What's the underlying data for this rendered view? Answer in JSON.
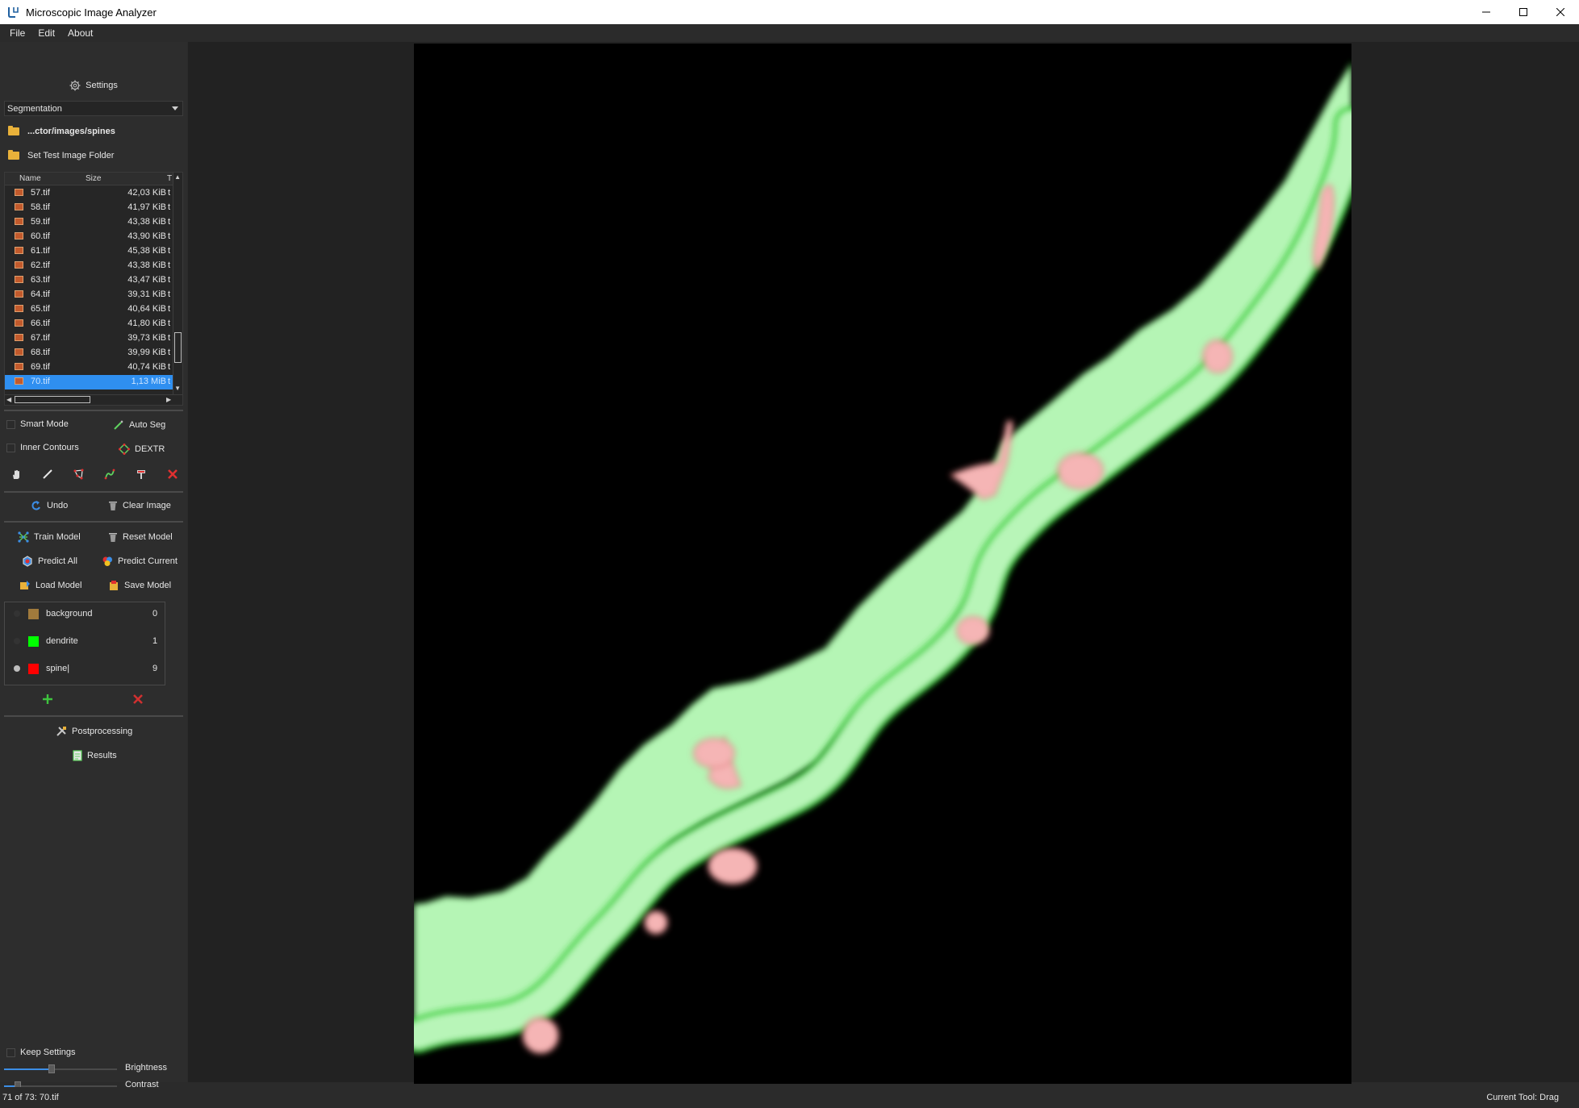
{
  "window": {
    "title": "Microscopic Image Analyzer",
    "controls": [
      "minimize-icon",
      "maximize-icon",
      "close-icon"
    ]
  },
  "menu": [
    "File",
    "Edit",
    "About"
  ],
  "sidebar": {
    "settings_label": "Settings",
    "mode_select": "Segmentation",
    "image_folder": "...ctor/images/spines",
    "test_folder_label": "Set Test Image Folder",
    "file_table": {
      "headers": [
        "Name",
        "Size",
        "T"
      ],
      "rows": [
        {
          "name": "57.tif",
          "size": "42,03 KiB",
          "type": "t"
        },
        {
          "name": "58.tif",
          "size": "41,97 KiB",
          "type": "t"
        },
        {
          "name": "59.tif",
          "size": "43,38 KiB",
          "type": "t"
        },
        {
          "name": "60.tif",
          "size": "43,90 KiB",
          "type": "t"
        },
        {
          "name": "61.tif",
          "size": "45,38 KiB",
          "type": "t"
        },
        {
          "name": "62.tif",
          "size": "43,38 KiB",
          "type": "t"
        },
        {
          "name": "63.tif",
          "size": "43,47 KiB",
          "type": "t"
        },
        {
          "name": "64.tif",
          "size": "39,31 KiB",
          "type": "t"
        },
        {
          "name": "65.tif",
          "size": "40,64 KiB",
          "type": "t"
        },
        {
          "name": "66.tif",
          "size": "41,80 KiB",
          "type": "t"
        },
        {
          "name": "67.tif",
          "size": "39,73 KiB",
          "type": "t"
        },
        {
          "name": "68.tif",
          "size": "39,99 KiB",
          "type": "t"
        },
        {
          "name": "69.tif",
          "size": "40,74 KiB",
          "type": "t"
        },
        {
          "name": "70.tif",
          "size": "1,13 MiB",
          "type": "t"
        }
      ],
      "selected_index": 13
    },
    "smart_mode_label": "Smart Mode",
    "auto_seg_label": "Auto Seg",
    "inner_contours_label": "Inner Contours",
    "dextr_label": "DEXTR",
    "tool_icons": [
      "hand-drag-icon",
      "pen-icon",
      "polygon-icon",
      "spline-icon",
      "fill-icon",
      "delete-icon"
    ],
    "undo_label": "Undo",
    "clear_image_label": "Clear Image",
    "train_model_label": "Train Model",
    "reset_model_label": "Reset Model",
    "predict_all_label": "Predict All",
    "predict_current_label": "Predict Current",
    "load_model_label": "Load Model",
    "save_model_label": "Save Model",
    "classes": [
      {
        "name": "background",
        "color": "#a07a3c",
        "count": "0",
        "selected": false
      },
      {
        "name": "dendrite",
        "color": "#00ff00",
        "count": "1",
        "selected": false
      },
      {
        "name": "spine|",
        "color": "#ff0000",
        "count": "9",
        "selected": true
      }
    ],
    "postprocessing_label": "Postprocessing",
    "results_label": "Results",
    "keep_settings_label": "Keep Settings",
    "brightness_label": "Brightness",
    "brightness_value": 0.42,
    "contrast_label": "Contrast",
    "contrast_value": 0.12
  },
  "status": {
    "left": "71 of 73: 70.tif",
    "right": "Current Tool: Drag"
  },
  "colors": {
    "dendrite_fill": "#b5f5b5",
    "dendrite_outline": "#22c322",
    "spine_fill": "#f5b5b5",
    "spine_outline": "#d03030",
    "selection": "#2f8ff0"
  }
}
